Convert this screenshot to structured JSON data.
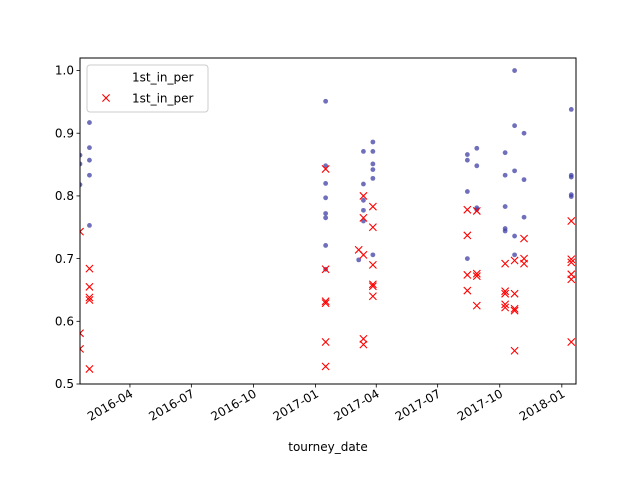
{
  "chart_data": {
    "type": "scatter",
    "xlabel": "tourney_date",
    "ylabel": "",
    "xlim": [
      "2016-01-18",
      "2018-01-22"
    ],
    "ylim": [
      0.5,
      1.02
    ],
    "x_ticks": [
      "2016-04-01",
      "2016-07-01",
      "2016-10-01",
      "2017-01-01",
      "2017-04-01",
      "2017-07-01",
      "2017-10-01",
      "2018-01-01"
    ],
    "x_tick_labels": [
      "2016-04",
      "2016-07",
      "2016-10",
      "2017-01",
      "2017-04",
      "2017-07",
      "2017-10",
      "2018-01"
    ],
    "y_ticks": [
      0.5,
      0.6,
      0.7,
      0.8,
      0.9,
      1.0
    ],
    "y_tick_labels": [
      "0.5",
      "0.6",
      "0.7",
      "0.8",
      "0.9",
      "1.0"
    ],
    "legend": {
      "placement": "upper-left",
      "entries": [
        "1st_in_per",
        "1st_in_per"
      ]
    },
    "grid": false,
    "series": [
      {
        "name": "1st_in_per",
        "marker": "dot",
        "color": "#3f3fa5",
        "points": [
          [
            "2016-01-18",
            0.865
          ],
          [
            "2016-01-18",
            0.851
          ],
          [
            "2016-01-18",
            0.818
          ],
          [
            "2016-02-01",
            0.917
          ],
          [
            "2016-02-01",
            0.877
          ],
          [
            "2016-02-01",
            0.857
          ],
          [
            "2016-02-01",
            0.833
          ],
          [
            "2016-02-01",
            0.753
          ],
          [
            "2017-01-16",
            0.951
          ],
          [
            "2017-01-16",
            0.848
          ],
          [
            "2017-01-16",
            0.82
          ],
          [
            "2017-01-16",
            0.797
          ],
          [
            "2017-01-16",
            0.772
          ],
          [
            "2017-01-16",
            0.765
          ],
          [
            "2017-01-16",
            0.721
          ],
          [
            "2017-01-16",
            0.683
          ],
          [
            "2017-03-06",
            0.698
          ],
          [
            "2017-03-13",
            0.871
          ],
          [
            "2017-03-13",
            0.819
          ],
          [
            "2017-03-13",
            0.793
          ],
          [
            "2017-03-13",
            0.777
          ],
          [
            "2017-03-13",
            0.76
          ],
          [
            "2017-03-27",
            0.886
          ],
          [
            "2017-03-27",
            0.871
          ],
          [
            "2017-03-27",
            0.851
          ],
          [
            "2017-03-27",
            0.842
          ],
          [
            "2017-03-27",
            0.828
          ],
          [
            "2017-03-27",
            0.706
          ],
          [
            "2017-08-14",
            0.866
          ],
          [
            "2017-08-14",
            0.857
          ],
          [
            "2017-08-14",
            0.807
          ],
          [
            "2017-08-14",
            0.7
          ],
          [
            "2017-08-28",
            0.876
          ],
          [
            "2017-08-28",
            0.848
          ],
          [
            "2017-08-28",
            0.781
          ],
          [
            "2017-08-28",
            0.778
          ],
          [
            "2017-10-09",
            0.869
          ],
          [
            "2017-10-09",
            0.833
          ],
          [
            "2017-10-09",
            0.783
          ],
          [
            "2017-10-09",
            0.748
          ],
          [
            "2017-10-09",
            0.744
          ],
          [
            "2017-10-23",
            1.0
          ],
          [
            "2017-10-23",
            0.912
          ],
          [
            "2017-10-23",
            0.84
          ],
          [
            "2017-10-23",
            0.736
          ],
          [
            "2017-10-23",
            0.706
          ],
          [
            "2017-11-06",
            0.9
          ],
          [
            "2017-11-06",
            0.826
          ],
          [
            "2017-11-06",
            0.766
          ],
          [
            "2018-01-15",
            0.938
          ],
          [
            "2018-01-15",
            0.833
          ],
          [
            "2018-01-15",
            0.83
          ],
          [
            "2018-01-15",
            0.802
          ],
          [
            "2018-01-15",
            0.799
          ]
        ]
      },
      {
        "name": "1st_in_per",
        "marker": "x",
        "color": "#ff0000",
        "points": [
          [
            "2016-01-18",
            0.743
          ],
          [
            "2016-01-18",
            0.581
          ],
          [
            "2016-01-18",
            0.556
          ],
          [
            "2016-02-01",
            0.684
          ],
          [
            "2016-02-01",
            0.655
          ],
          [
            "2016-02-01",
            0.638
          ],
          [
            "2016-02-01",
            0.634
          ],
          [
            "2016-02-01",
            0.524
          ],
          [
            "2017-01-16",
            0.843
          ],
          [
            "2017-01-16",
            0.683
          ],
          [
            "2017-01-16",
            0.632
          ],
          [
            "2017-01-16",
            0.629
          ],
          [
            "2017-01-16",
            0.567
          ],
          [
            "2017-01-16",
            0.528
          ],
          [
            "2017-03-06",
            0.714
          ],
          [
            "2017-03-13",
            0.8
          ],
          [
            "2017-03-13",
            0.765
          ],
          [
            "2017-03-13",
            0.706
          ],
          [
            "2017-03-13",
            0.572
          ],
          [
            "2017-03-13",
            0.563
          ],
          [
            "2017-03-27",
            0.783
          ],
          [
            "2017-03-27",
            0.75
          ],
          [
            "2017-03-27",
            0.69
          ],
          [
            "2017-03-27",
            0.659
          ],
          [
            "2017-03-27",
            0.656
          ],
          [
            "2017-03-27",
            0.64
          ],
          [
            "2017-08-14",
            0.778
          ],
          [
            "2017-08-14",
            0.737
          ],
          [
            "2017-08-14",
            0.674
          ],
          [
            "2017-08-14",
            0.649
          ],
          [
            "2017-08-28",
            0.776
          ],
          [
            "2017-08-28",
            0.676
          ],
          [
            "2017-08-28",
            0.672
          ],
          [
            "2017-08-28",
            0.625
          ],
          [
            "2017-10-09",
            0.692
          ],
          [
            "2017-10-09",
            0.648
          ],
          [
            "2017-10-09",
            0.644
          ],
          [
            "2017-10-09",
            0.627
          ],
          [
            "2017-10-09",
            0.622
          ],
          [
            "2017-10-23",
            0.697
          ],
          [
            "2017-10-23",
            0.644
          ],
          [
            "2017-10-23",
            0.62
          ],
          [
            "2017-10-23",
            0.617
          ],
          [
            "2017-10-23",
            0.553
          ],
          [
            "2017-11-06",
            0.732
          ],
          [
            "2017-11-06",
            0.7
          ],
          [
            "2017-11-06",
            0.692
          ],
          [
            "2018-01-15",
            0.76
          ],
          [
            "2018-01-15",
            0.699
          ],
          [
            "2018-01-15",
            0.694
          ],
          [
            "2018-01-15",
            0.675
          ],
          [
            "2018-01-15",
            0.667
          ],
          [
            "2018-01-15",
            0.567
          ]
        ]
      }
    ]
  }
}
